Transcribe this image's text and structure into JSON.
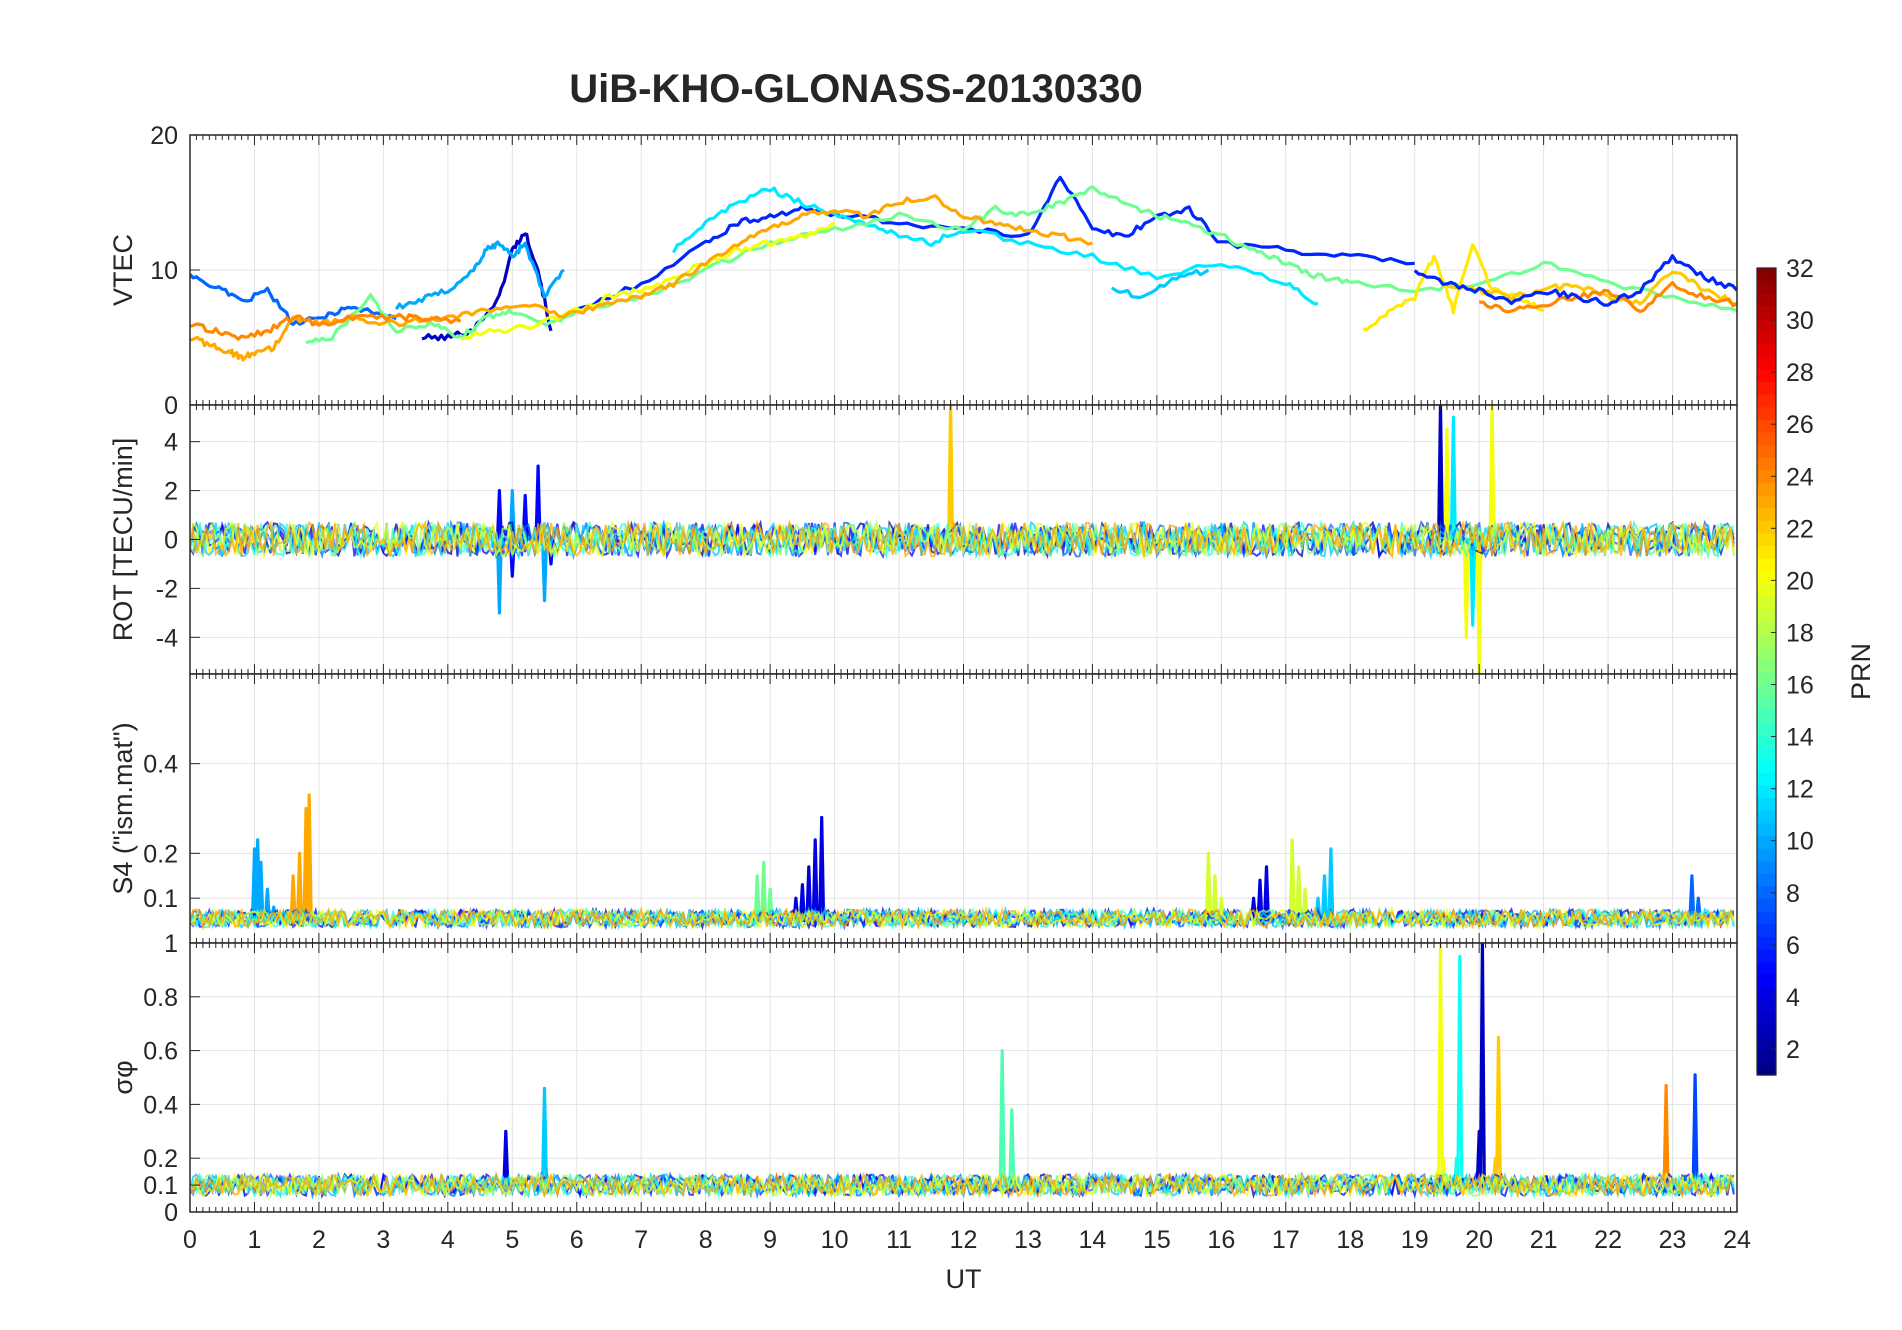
{
  "chart_data": [
    {
      "type": "line",
      "title": "UiB-KHO-GLONASS-20130330",
      "xlabel": "",
      "ylabel": "VTEC",
      "xlim": [
        0,
        24
      ],
      "ylim": [
        0,
        20
      ],
      "yticks": [
        "0",
        "10",
        "20"
      ],
      "grid": true,
      "series_color_by": "PRN",
      "series": [
        {
          "prn": 3,
          "x": [
            3.6,
            4.0,
            4.4,
            4.8,
            5.0,
            5.2,
            5.4,
            5.6
          ],
          "values": [
            5.0,
            5.0,
            5.6,
            8.0,
            11.5,
            12.8,
            10.0,
            5.5
          ]
        },
        {
          "prn": 8,
          "x": [
            0.0,
            0.4,
            0.8,
            1.2,
            1.6,
            2.0,
            2.4,
            2.8,
            3.2
          ],
          "values": [
            9.5,
            8.8,
            7.6,
            8.5,
            6.0,
            6.4,
            7.2,
            7.0,
            6.4
          ]
        },
        {
          "prn": 10,
          "x": [
            3.2,
            3.6,
            4.0,
            4.4,
            4.6,
            4.8,
            5.0,
            5.2,
            5.5,
            5.8
          ],
          "values": [
            7.2,
            7.8,
            8.5,
            10.0,
            11.5,
            12.0,
            11.0,
            12.0,
            8.0,
            10.0
          ]
        },
        {
          "prn": 6,
          "x": [
            6.0,
            7.0,
            8.0,
            8.5,
            9.0,
            9.5,
            10.0,
            11.0,
            12.0,
            13.0,
            13.5,
            14.0,
            14.5,
            15.0,
            15.5,
            16.0,
            17.0,
            18.0,
            19.0
          ],
          "values": [
            7.0,
            9.0,
            12.0,
            13.5,
            14.0,
            14.5,
            14.2,
            13.5,
            13.0,
            12.5,
            17.0,
            13.0,
            12.5,
            14.0,
            14.5,
            12.0,
            11.5,
            11.0,
            10.5
          ]
        },
        {
          "prn": 12,
          "x": [
            7.5,
            8.0,
            8.5,
            9.0,
            9.5,
            10.0,
            10.5,
            11.0,
            11.5,
            12.0,
            13.0,
            14.0,
            15.0,
            16.0,
            17.0,
            17.5
          ],
          "values": [
            11.5,
            13.5,
            15.0,
            16.0,
            15.0,
            14.0,
            13.5,
            12.5,
            12.0,
            13.0,
            12.0,
            11.0,
            9.5,
            10.5,
            9.0,
            7.5
          ]
        },
        {
          "prn": 16,
          "x": [
            1.8,
            2.2,
            2.8,
            3.2,
            3.8,
            4.2,
            4.6,
            5.0,
            5.6,
            6.0,
            7.0,
            8.0,
            9.0,
            10.0,
            11.0,
            12.0,
            12.5,
            13.0,
            13.5,
            14.0,
            14.5,
            15.0,
            15.5,
            16.0,
            16.5,
            17.0,
            17.5,
            18.0,
            19.0,
            20.0,
            21.0,
            22.0,
            23.0,
            24.0
          ],
          "values": [
            4.5,
            5.0,
            8.0,
            5.5,
            6.0,
            5.0,
            6.5,
            7.0,
            6.0,
            7.0,
            8.0,
            10.0,
            12.0,
            13.0,
            14.0,
            13.0,
            14.5,
            14.0,
            15.0,
            16.0,
            15.0,
            14.0,
            13.5,
            12.5,
            11.5,
            10.5,
            9.5,
            9.0,
            8.5,
            9.0,
            10.5,
            9.0,
            8.0,
            7.0
          ]
        },
        {
          "prn": 20,
          "x": [
            4.2,
            4.8,
            5.4,
            6.0,
            6.5,
            7.0,
            7.5,
            8.0,
            8.5,
            9.0,
            9.5,
            10.0
          ],
          "values": [
            5.0,
            5.5,
            6.0,
            7.0,
            8.0,
            8.5,
            9.5,
            10.5,
            11.5,
            12.0,
            12.5,
            13.5
          ]
        },
        {
          "prn": 21,
          "x": [
            18.2,
            18.6,
            19.0,
            19.3,
            19.6,
            19.9,
            20.2,
            20.6,
            21.0
          ],
          "values": [
            5.5,
            7.0,
            8.0,
            11.0,
            7.0,
            12.0,
            8.5,
            8.0,
            7.0
          ]
        },
        {
          "prn": 23,
          "x": [
            0.0,
            0.3,
            0.6,
            0.8,
            1.0,
            1.3,
            1.6,
            2.0,
            2.5,
            3.0,
            3.5,
            4.0,
            4.6,
            5.2,
            5.8,
            6.4,
            7.0,
            7.5,
            8.0,
            8.5,
            9.0,
            9.5,
            10.0,
            10.5,
            11.0,
            11.5,
            12.0,
            12.5,
            13.0,
            13.5,
            14.0
          ],
          "values": [
            5.0,
            4.5,
            4.0,
            3.5,
            3.8,
            4.2,
            6.5,
            6.0,
            6.5,
            6.0,
            6.2,
            6.5,
            7.0,
            7.5,
            6.5,
            7.5,
            8.0,
            9.0,
            10.5,
            12.0,
            13.0,
            14.0,
            14.5,
            14.0,
            15.0,
            15.5,
            14.0,
            13.5,
            13.0,
            12.5,
            12.0
          ]
        },
        {
          "prn": 24,
          "x": [
            0.0,
            0.4,
            0.8,
            1.2,
            1.6,
            2.0,
            2.6,
            3.2,
            3.6,
            4.2
          ],
          "values": [
            6.0,
            5.5,
            5.0,
            5.5,
            6.5,
            6.0,
            6.5,
            6.5,
            6.5,
            6.2
          ]
        },
        {
          "prn": 22,
          "x": [
            19.5,
            20.0,
            20.5,
            21.0,
            21.5,
            22.0,
            22.5,
            23.0,
            23.5,
            24.0
          ],
          "values": [
            9.0,
            8.5,
            8.0,
            8.5,
            9.0,
            8.0,
            7.5,
            10.0,
            8.5,
            7.5
          ]
        },
        {
          "prn": 24,
          "x": [
            20.0,
            20.5,
            21.0,
            21.5,
            22.0,
            22.5,
            23.0,
            23.5,
            24.0
          ],
          "values": [
            7.5,
            7.0,
            7.5,
            8.0,
            8.5,
            7.0,
            9.0,
            8.0,
            7.5
          ]
        },
        {
          "prn": 6,
          "x": [
            19.0,
            19.5,
            20.0,
            20.5,
            21.0,
            21.5,
            22.0,
            22.5,
            23.0,
            23.5,
            24.0
          ],
          "values": [
            10.0,
            9.0,
            8.5,
            7.5,
            8.5,
            8.0,
            7.5,
            8.5,
            11.0,
            9.5,
            8.5
          ]
        },
        {
          "prn": 11,
          "x": [
            14.3,
            14.8,
            15.3,
            15.8
          ],
          "values": [
            8.5,
            8.0,
            9.5,
            10.0
          ]
        }
      ]
    },
    {
      "type": "line",
      "xlabel": "",
      "ylabel": "ROT [TECU/min]",
      "xlim": [
        0,
        24
      ],
      "ylim": [
        -5.5,
        5.5
      ],
      "yticks": [
        "-4",
        "-2",
        "0",
        "2",
        "4"
      ],
      "grid": true,
      "series": [
        {
          "prn": 5,
          "x": [
            4.8,
            5.0,
            5.2,
            5.4,
            5.6
          ],
          "values": [
            2.0,
            -1.5,
            1.8,
            3.0,
            -1.0
          ]
        },
        {
          "prn": 10,
          "x": [
            4.8,
            5.0,
            5.5
          ],
          "values": [
            -3.0,
            2.0,
            -2.5
          ]
        },
        {
          "prn": 22,
          "x": [
            11.8
          ],
          "values": [
            5.5
          ]
        },
        {
          "prn": 20,
          "x": [
            19.5,
            19.8,
            20.0,
            20.2
          ],
          "values": [
            4.5,
            -4.0,
            -5.5,
            5.5
          ]
        },
        {
          "prn": 3,
          "x": [
            19.4
          ],
          "values": [
            5.5
          ]
        },
        {
          "prn": 12,
          "x": [
            19.6,
            19.9
          ],
          "values": [
            5.0,
            -3.5
          ]
        }
      ]
    },
    {
      "type": "line",
      "xlabel": "",
      "ylabel": "S4 (\"ism.mat\")",
      "xlim": [
        0,
        24
      ],
      "ylim": [
        0,
        0.6
      ],
      "yticks": [
        "0.1",
        "0.2",
        "0.4"
      ],
      "grid": true,
      "series": [
        {
          "prn": 23,
          "x": [
            1.5,
            1.6,
            1.7,
            1.8,
            1.85
          ],
          "values": [
            0.07,
            0.15,
            0.2,
            0.3,
            0.33
          ]
        },
        {
          "prn": 10,
          "x": [
            1.0,
            1.05,
            1.1,
            1.2,
            1.3
          ],
          "values": [
            0.21,
            0.23,
            0.18,
            0.12,
            0.08
          ]
        },
        {
          "prn": 4,
          "x": [
            9.4,
            9.5,
            9.6,
            9.7,
            9.8
          ],
          "values": [
            0.1,
            0.13,
            0.17,
            0.23,
            0.28
          ]
        },
        {
          "prn": 16,
          "x": [
            8.8,
            8.9,
            9.0
          ],
          "values": [
            0.15,
            0.18,
            0.12
          ]
        },
        {
          "prn": 19,
          "x": [
            15.8,
            15.9,
            16.0
          ],
          "values": [
            0.2,
            0.15,
            0.1
          ]
        },
        {
          "prn": 4,
          "x": [
            16.5,
            16.6,
            16.7
          ],
          "values": [
            0.1,
            0.14,
            0.17
          ]
        },
        {
          "prn": 19,
          "x": [
            17.1,
            17.2,
            17.3
          ],
          "values": [
            0.23,
            0.17,
            0.12
          ]
        },
        {
          "prn": 11,
          "x": [
            17.5,
            17.6,
            17.7
          ],
          "values": [
            0.1,
            0.15,
            0.21
          ]
        },
        {
          "prn": 8,
          "x": [
            23.3,
            23.4
          ],
          "values": [
            0.15,
            0.1
          ]
        }
      ]
    },
    {
      "type": "line",
      "xlabel": "UT",
      "ylabel": "σφ",
      "xlim": [
        0,
        24
      ],
      "ylim": [
        0,
        1.0
      ],
      "xticks": [
        "0",
        "1",
        "2",
        "3",
        "4",
        "5",
        "6",
        "7",
        "8",
        "9",
        "10",
        "11",
        "12",
        "13",
        "14",
        "15",
        "16",
        "17",
        "18",
        "19",
        "20",
        "21",
        "22",
        "23",
        "24"
      ],
      "yticks": [
        "0",
        "0.1",
        "0.2",
        "0.4",
        "0.6",
        "0.8",
        "1"
      ],
      "grid": true,
      "series": [
        {
          "prn": 20,
          "x": [
            19.35,
            19.4,
            19.45
          ],
          "values": [
            0.15,
            1.0,
            0.2
          ]
        },
        {
          "prn": 13,
          "x": [
            19.65,
            19.7
          ],
          "values": [
            0.2,
            0.95
          ]
        },
        {
          "prn": 3,
          "x": [
            20.0,
            20.05
          ],
          "values": [
            0.3,
            1.0
          ]
        },
        {
          "prn": 22,
          "x": [
            20.25,
            20.3
          ],
          "values": [
            0.2,
            0.65
          ]
        },
        {
          "prn": 11,
          "x": [
            5.5
          ],
          "values": [
            0.46
          ]
        },
        {
          "prn": 15,
          "x": [
            12.6,
            12.75
          ],
          "values": [
            0.6,
            0.38
          ]
        },
        {
          "prn": 24,
          "x": [
            22.9
          ],
          "values": [
            0.47
          ]
        },
        {
          "prn": 7,
          "x": [
            23.35
          ],
          "values": [
            0.51
          ]
        },
        {
          "prn": 4,
          "x": [
            4.9
          ],
          "values": [
            0.3
          ]
        }
      ]
    }
  ],
  "colorbar": {
    "label": "PRN",
    "colormap": "jet",
    "range": [
      1,
      32
    ],
    "ticks": [
      "2",
      "4",
      "6",
      "8",
      "10",
      "12",
      "14",
      "16",
      "18",
      "20",
      "22",
      "24",
      "26",
      "28",
      "30",
      "32"
    ]
  }
}
